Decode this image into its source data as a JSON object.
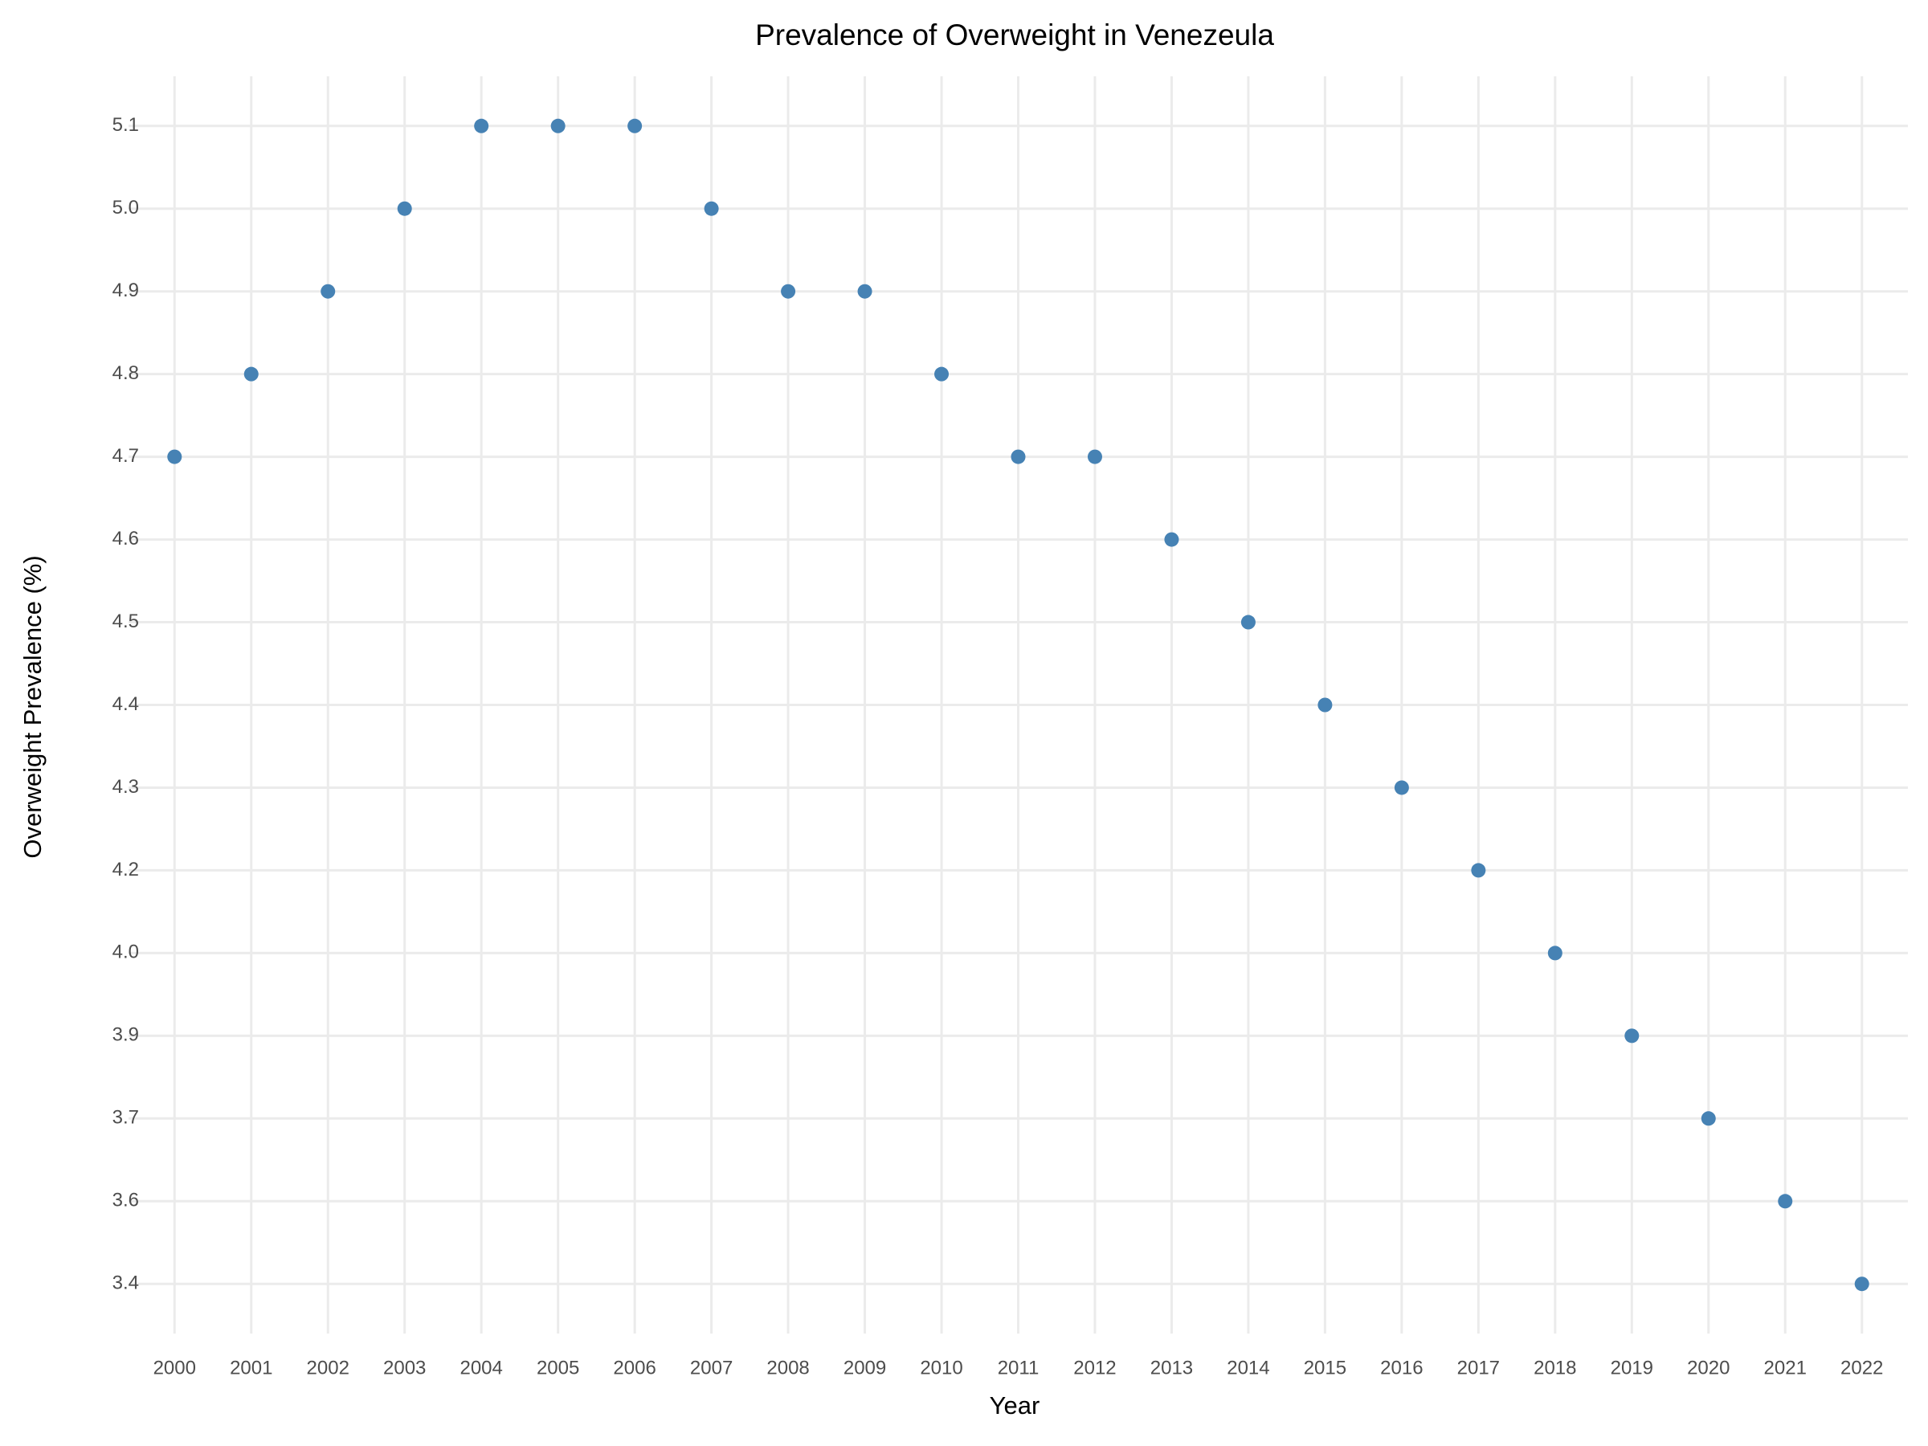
{
  "chart_data": {
    "type": "scatter",
    "title": "Prevalence of Overweight in Venezeula",
    "x_label": "Year",
    "y_label": "Overweight Prevalence (%)",
    "categories": [
      "2000",
      "2001",
      "2002",
      "2003",
      "2004",
      "2005",
      "2006",
      "2007",
      "2008",
      "2009",
      "2010",
      "2011",
      "2012",
      "2013",
      "2014",
      "2015",
      "2016",
      "2017",
      "2018",
      "2019",
      "2020",
      "2021",
      "2022"
    ],
    "values": [
      4.7,
      4.8,
      4.9,
      5.0,
      5.1,
      5.1,
      5.1,
      5.0,
      4.9,
      4.9,
      4.8,
      4.7,
      4.7,
      4.6,
      4.5,
      4.4,
      4.3,
      4.2,
      4.0,
      3.9,
      3.7,
      3.6,
      3.4
    ],
    "yticks": [
      3.4,
      3.6,
      3.7,
      3.9,
      {
        "value": 4,
        "label": "4.0"
      },
      4.2,
      4.3,
      4.4,
      4.5,
      4.6,
      4.7,
      4.8,
      4.9,
      {
        "value": 5,
        "label": "5.0"
      },
      5.1
    ],
    "color": "#4682b4",
    "grid": true
  }
}
